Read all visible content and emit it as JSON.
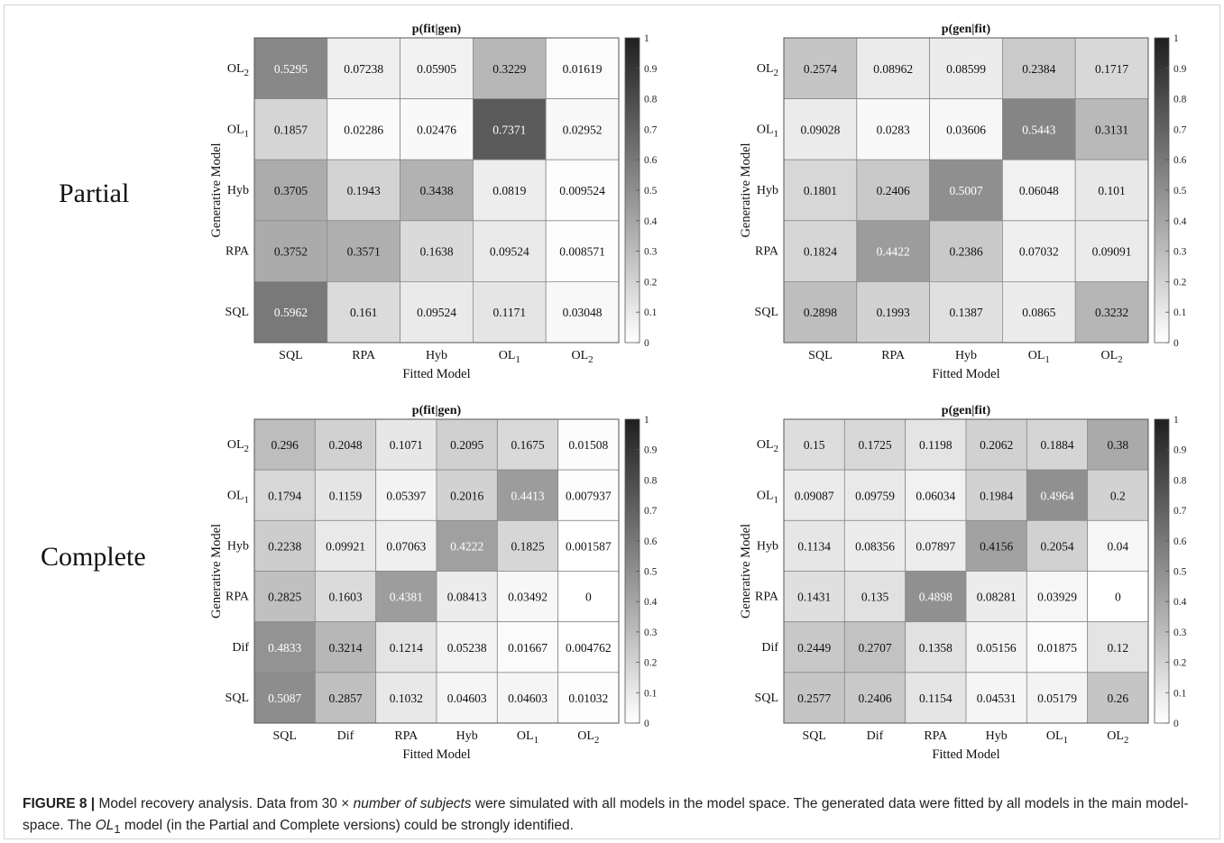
{
  "row_labels": [
    "Partial",
    "Complete"
  ],
  "caption": {
    "figure_label": "FIGURE 8 |",
    "part1": " Model recovery analysis. Data from 30 × ",
    "italic1": "number of subjects",
    "part2": " were simulated with all models in the model space. The generated data were fitted by all models in the main model-space. The ",
    "italic2": "OL",
    "italic2_sub": "1",
    "part3": " model (in the Partial and Complete versions) could be strongly identified."
  },
  "colorbar": {
    "ticks": [
      "0",
      "0.1",
      "0.2",
      "0.3",
      "0.4",
      "0.5",
      "0.6",
      "0.7",
      "0.8",
      "0.9",
      "1"
    ],
    "range": [
      0,
      1
    ],
    "colormap": "white-to-black grayscale"
  },
  "chart_data": [
    {
      "type": "heatmap",
      "title": "p(fit|gen)",
      "xlabel": "Fitted Model",
      "ylabel": "Generative Model",
      "x": [
        [
          "SQL",
          ""
        ],
        [
          "RPA",
          ""
        ],
        [
          "Hyb",
          ""
        ],
        [
          "OL",
          "1"
        ],
        [
          "OL",
          "2"
        ]
      ],
      "y": [
        [
          "OL",
          "2"
        ],
        [
          "OL",
          "1"
        ],
        [
          "Hyb",
          ""
        ],
        [
          "RPA",
          ""
        ],
        [
          "SQL",
          ""
        ]
      ],
      "values": [
        [
          "0.5295",
          "0.07238",
          "0.05905",
          "0.3229",
          "0.01619"
        ],
        [
          "0.1857",
          "0.02286",
          "0.02476",
          "0.7371",
          "0.02952"
        ],
        [
          "0.3705",
          "0.1943",
          "0.3438",
          "0.0819",
          "0.009524"
        ],
        [
          "0.3752",
          "0.3571",
          "0.1638",
          "0.09524",
          "0.008571"
        ],
        [
          "0.5962",
          "0.161",
          "0.09524",
          "0.1171",
          "0.03048"
        ]
      ]
    },
    {
      "type": "heatmap",
      "title": "p(gen|fit)",
      "xlabel": "Fitted Model",
      "ylabel": "Generative Model",
      "x": [
        [
          "SQL",
          ""
        ],
        [
          "RPA",
          ""
        ],
        [
          "Hyb",
          ""
        ],
        [
          "OL",
          "1"
        ],
        [
          "OL",
          "2"
        ]
      ],
      "y": [
        [
          "OL",
          "2"
        ],
        [
          "OL",
          "1"
        ],
        [
          "Hyb",
          ""
        ],
        [
          "RPA",
          ""
        ],
        [
          "SQL",
          ""
        ]
      ],
      "values": [
        [
          "0.2574",
          "0.08962",
          "0.08599",
          "0.2384",
          "0.1717"
        ],
        [
          "0.09028",
          "0.0283",
          "0.03606",
          "0.5443",
          "0.3131"
        ],
        [
          "0.1801",
          "0.2406",
          "0.5007",
          "0.06048",
          "0.101"
        ],
        [
          "0.1824",
          "0.4422",
          "0.2386",
          "0.07032",
          "0.09091"
        ],
        [
          "0.2898",
          "0.1993",
          "0.1387",
          "0.0865",
          "0.3232"
        ]
      ]
    },
    {
      "type": "heatmap",
      "title": "p(fit|gen)",
      "xlabel": "Fitted Model",
      "ylabel": "Generative Model",
      "x": [
        [
          "SQL",
          ""
        ],
        [
          "Dif",
          ""
        ],
        [
          "RPA",
          ""
        ],
        [
          "Hyb",
          ""
        ],
        [
          "OL",
          "1"
        ],
        [
          "OL",
          "2"
        ]
      ],
      "y": [
        [
          "OL",
          "2"
        ],
        [
          "OL",
          "1"
        ],
        [
          "Hyb",
          ""
        ],
        [
          "RPA",
          ""
        ],
        [
          "Dif",
          ""
        ],
        [
          "SQL",
          ""
        ]
      ],
      "values": [
        [
          "0.296",
          "0.2048",
          "0.1071",
          "0.2095",
          "0.1675",
          "0.01508"
        ],
        [
          "0.1794",
          "0.1159",
          "0.05397",
          "0.2016",
          "0.4413",
          "0.007937"
        ],
        [
          "0.2238",
          "0.09921",
          "0.07063",
          "0.4222",
          "0.1825",
          "0.001587"
        ],
        [
          "0.2825",
          "0.1603",
          "0.4381",
          "0.08413",
          "0.03492",
          "0"
        ],
        [
          "0.4833",
          "0.3214",
          "0.1214",
          "0.05238",
          "0.01667",
          "0.004762"
        ],
        [
          "0.5087",
          "0.2857",
          "0.1032",
          "0.04603",
          "0.04603",
          "0.01032"
        ]
      ]
    },
    {
      "type": "heatmap",
      "title": "p(gen|fit)",
      "xlabel": "Fitted Model",
      "ylabel": "Generative Model",
      "x": [
        [
          "SQL",
          ""
        ],
        [
          "Dif",
          ""
        ],
        [
          "RPA",
          ""
        ],
        [
          "Hyb",
          ""
        ],
        [
          "OL",
          "1"
        ],
        [
          "OL",
          "2"
        ]
      ],
      "y": [
        [
          "OL",
          "2"
        ],
        [
          "OL",
          "1"
        ],
        [
          "Hyb",
          ""
        ],
        [
          "RPA",
          ""
        ],
        [
          "Dif",
          ""
        ],
        [
          "SQL",
          ""
        ]
      ],
      "values": [
        [
          "0.15",
          "0.1725",
          "0.1198",
          "0.2062",
          "0.1884",
          "0.38"
        ],
        [
          "0.09087",
          "0.09759",
          "0.06034",
          "0.1984",
          "0.4964",
          "0.2"
        ],
        [
          "0.1134",
          "0.08356",
          "0.07897",
          "0.4156",
          "0.2054",
          "0.04"
        ],
        [
          "0.1431",
          "0.135",
          "0.4898",
          "0.08281",
          "0.03929",
          "0"
        ],
        [
          "0.2449",
          "0.2707",
          "0.1358",
          "0.05156",
          "0.01875",
          "0.12"
        ],
        [
          "0.2577",
          "0.2406",
          "0.1154",
          "0.04531",
          "0.05179",
          "0.26"
        ]
      ]
    }
  ]
}
